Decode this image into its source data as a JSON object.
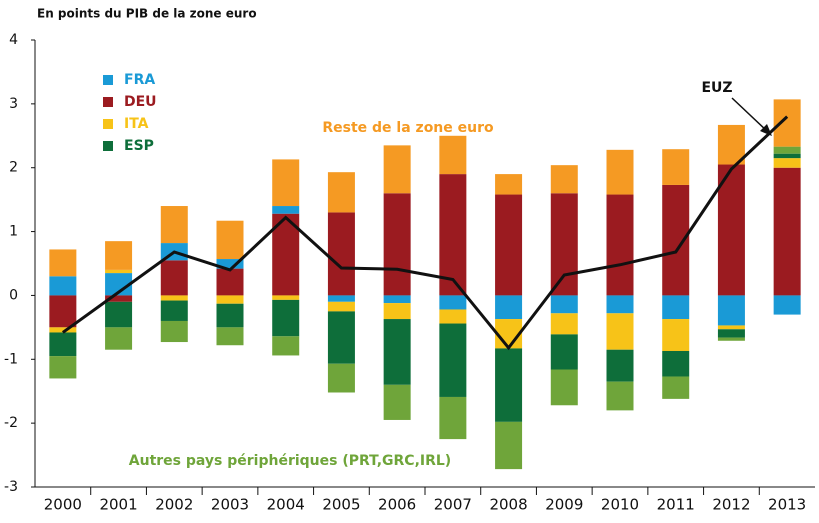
{
  "chart_data": {
    "type": "bar",
    "title": "En points du PIB de la zone euro",
    "categories": [
      "2000",
      "2001",
      "2002",
      "2003",
      "2004",
      "2005",
      "2006",
      "2007",
      "2008",
      "2009",
      "2010",
      "2011",
      "2012",
      "2013"
    ],
    "series": [
      {
        "name": "FRA",
        "color": "#1a9ad6",
        "values": [
          0.3,
          0.35,
          0.27,
          0.15,
          0.12,
          -0.1,
          -0.12,
          -0.22,
          -0.37,
          -0.28,
          -0.28,
          -0.37,
          -0.47,
          -0.3
        ]
      },
      {
        "name": "DEU",
        "color": "#9b1b20",
        "values": [
          -0.5,
          -0.1,
          0.55,
          0.42,
          1.28,
          1.3,
          1.6,
          1.9,
          1.58,
          1.6,
          1.58,
          1.73,
          2.05,
          2.0
        ]
      },
      {
        "name": "ITA",
        "color": "#f7c318",
        "values": [
          -0.08,
          0.05,
          -0.08,
          -0.13,
          -0.07,
          -0.15,
          -0.25,
          -0.22,
          -0.46,
          -0.33,
          -0.57,
          -0.5,
          -0.06,
          0.15
        ]
      },
      {
        "name": "ESP",
        "color": "#0e6e3a",
        "values": [
          -0.37,
          -0.4,
          -0.32,
          -0.37,
          -0.57,
          -0.82,
          -1.03,
          -1.15,
          -1.15,
          -0.55,
          -0.5,
          -0.4,
          -0.13,
          0.07
        ]
      },
      {
        "name": "Autres pays périphériques (PRT,GRC,IRL)",
        "color": "#6fa53a",
        "values": [
          -0.35,
          -0.35,
          -0.33,
          -0.28,
          -0.3,
          -0.45,
          -0.55,
          -0.66,
          -0.74,
          -0.56,
          -0.45,
          -0.35,
          -0.05,
          0.11
        ]
      },
      {
        "name": "Reste de la zone euro",
        "color": "#f59a23",
        "values": [
          0.42,
          0.45,
          0.58,
          0.6,
          0.73,
          0.63,
          0.75,
          0.6,
          0.32,
          0.44,
          0.7,
          0.56,
          0.62,
          0.74
        ]
      },
      {
        "name": "EUZ",
        "type": "line",
        "color": "#111111",
        "values": [
          -0.58,
          0.05,
          0.68,
          0.4,
          1.22,
          0.43,
          0.41,
          0.25,
          -0.82,
          0.32,
          0.48,
          0.68,
          1.98,
          2.8
        ]
      }
    ],
    "ylim": [
      -3,
      4
    ],
    "yticks": [
      -3,
      -2,
      -1,
      0,
      1,
      2,
      3,
      4
    ],
    "grid": false
  }
}
